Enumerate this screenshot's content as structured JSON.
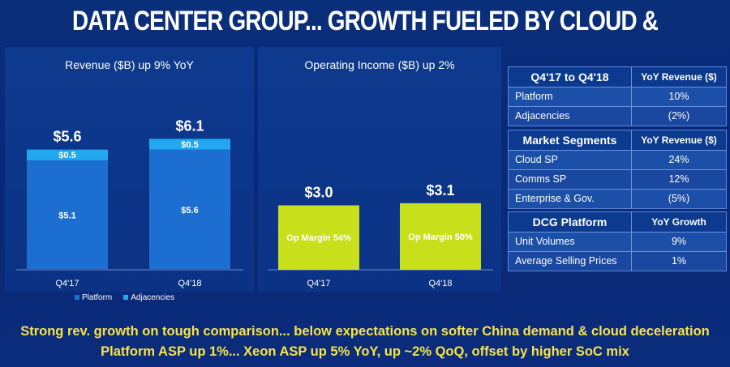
{
  "title": "DATA CENTER GROUP... GROWTH FUELED BY CLOUD & COMMS SP",
  "colors": {
    "platform": "#1c6fd1",
    "adjacencies": "#22a8f0",
    "op_income": "#c8e01c",
    "banner_text": "#f7e34a"
  },
  "chart_data": [
    {
      "type": "bar",
      "title": "Revenue ($B) up 9% YoY",
      "categories": [
        "Q4'17",
        "Q4'18"
      ],
      "series": [
        {
          "name": "Platform",
          "values": [
            5.1,
            5.6
          ],
          "labels": [
            "$5.1",
            "$5.6"
          ]
        },
        {
          "name": "Adjacencies",
          "values": [
            0.5,
            0.5
          ],
          "labels": [
            "$0.5",
            "$0.5"
          ]
        }
      ],
      "totals": [
        "$5.6",
        "$6.1"
      ],
      "stacked": true,
      "legend_placement": "bottom",
      "ylim": [
        0,
        6.6
      ]
    },
    {
      "type": "bar",
      "title": "Operating Income ($B) up 2%",
      "categories": [
        "Q4'17",
        "Q4'18"
      ],
      "series": [
        {
          "name": "",
          "values": [
            3.0,
            3.1
          ],
          "labels": [
            "Op Margin 54%",
            "Op Margin 50%"
          ]
        }
      ],
      "totals": [
        "$3.0",
        "$3.1"
      ],
      "ylim": [
        0,
        6.6
      ]
    }
  ],
  "tables": [
    {
      "header": [
        "Q4'17 to Q4'18",
        "YoY Revenue ($)"
      ],
      "rows": [
        [
          "Platform",
          "10%"
        ],
        [
          "Adjacencies",
          "(2%)"
        ]
      ]
    },
    {
      "header": [
        "Market Segments",
        "YoY Revenue ($)"
      ],
      "rows": [
        [
          "Cloud SP",
          "24%"
        ],
        [
          "Comms SP",
          "12%"
        ],
        [
          "Enterprise & Gov.",
          "(5%)"
        ]
      ]
    },
    {
      "header": [
        "DCG Platform",
        "YoY Growth"
      ],
      "rows": [
        [
          "Unit Volumes",
          "9%"
        ],
        [
          "Average Selling Prices",
          "1%"
        ]
      ]
    }
  ],
  "banner": {
    "line1": "Strong rev. growth on tough comparison... below expectations on softer China demand & cloud deceleration",
    "line2": "Platform ASP up 1%... Xeon ASP up 5% YoY,  up ~2% QoQ, offset by higher SoC mix"
  }
}
